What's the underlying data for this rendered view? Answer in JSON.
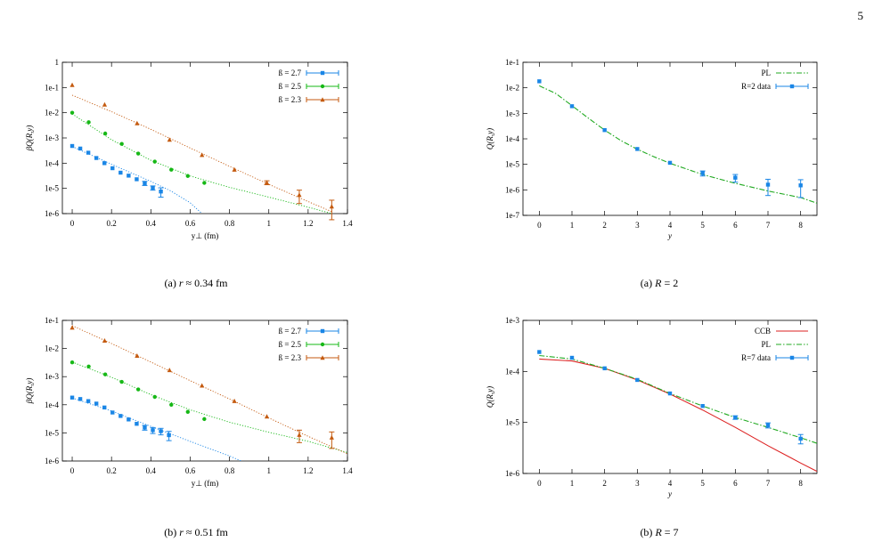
{
  "page_number": "5",
  "figures": {
    "a_left": {
      "caption_label": "(a)",
      "caption_var": "r",
      "caption_rest": "≈ 0.34 fm"
    },
    "b_left": {
      "caption_label": "(b)",
      "caption_var": "r",
      "caption_rest": "≈ 0.51 fm"
    },
    "a_right": {
      "caption_label": "(a)",
      "caption_var": "R",
      "caption_rest": "= 2"
    },
    "b_right": {
      "caption_label": "(b)",
      "caption_var": "R",
      "caption_rest": "= 7"
    }
  },
  "chart_data": [
    {
      "id": "p1",
      "type": "scatter",
      "log_y": true,
      "ylabel": "βQ(R,y)",
      "xlabel": "y⊥ (fm)",
      "xlim": [
        -0.05,
        1.4
      ],
      "ylim": [
        1e-06,
        1
      ],
      "xticks": [
        0,
        0.2,
        0.4,
        0.6,
        0.8,
        1,
        1.2,
        1.4
      ],
      "xtick_labels": [
        "0",
        "0.2",
        "0.4",
        "0.6",
        "0.8",
        "1",
        "1.2",
        "1.4"
      ],
      "yticks": [
        1e-06,
        1e-05,
        0.0001,
        0.001,
        0.01,
        0.1,
        1
      ],
      "ytick_labels": [
        "1e-6",
        "1e-5",
        "1e-4",
        "1e-3",
        "1e-2",
        "1e-1",
        "1"
      ],
      "legend_position": "top-right",
      "series": [
        {
          "name": "ß = 2.7",
          "color": "#1a86e6",
          "marker": "square",
          "x": [
            0,
            0.041,
            0.082,
            0.123,
            0.164,
            0.205,
            0.246,
            0.287,
            0.328,
            0.369,
            0.41,
            0.451
          ],
          "y": [
            0.00048,
            0.00038,
            0.00026,
            0.00016,
            0.0001,
            6.3e-05,
            4.2e-05,
            3.2e-05,
            2.3e-05,
            1.6e-05,
            1.05e-05,
            7.5e-06
          ],
          "err": [
            0,
            0,
            0,
            0,
            0,
            0,
            0,
            0,
            0,
            3e-06,
            2e-06,
            3e-06
          ],
          "fit": {
            "x": [
              0,
              0.2,
              0.4,
              0.5,
              0.6,
              0.66
            ],
            "y": [
              0.00046,
              9e-05,
              1.9e-05,
              8e-06,
              2.7e-06,
              1e-06
            ]
          }
        },
        {
          "name": "ß = 2.5",
          "color": "#16b816",
          "marker": "circle",
          "x": [
            0,
            0.084,
            0.168,
            0.252,
            0.336,
            0.42,
            0.504,
            0.588,
            0.672
          ],
          "y": [
            0.01,
            0.0042,
            0.0015,
            0.00058,
            0.00024,
            0.000115,
            5.5e-05,
            3.1e-05,
            1.65e-05
          ],
          "err": [
            0,
            0,
            0,
            0,
            0,
            0,
            0,
            0,
            0
          ],
          "fit": {
            "x": [
              0,
              0.2,
              0.4,
              0.6,
              0.8,
              1.0,
              1.2,
              1.32
            ],
            "y": [
              0.009,
              0.00085,
              0.00013,
              3.1e-05,
              1.1e-05,
              4.5e-06,
              1.8e-06,
              1e-06
            ]
          }
        },
        {
          "name": "ß = 2.3",
          "color": "#c45a0f",
          "marker": "triangle",
          "x": [
            0,
            0.165,
            0.33,
            0.495,
            0.66,
            0.825,
            0.99,
            1.155,
            1.32
          ],
          "y": [
            0.125,
            0.021,
            0.0038,
            0.00085,
            0.00021,
            5.5e-05,
            1.7e-05,
            5.5e-06,
            1.9e-06
          ],
          "err": [
            0,
            0,
            0,
            0,
            0,
            0,
            3e-06,
            3e-06,
            1.5e-06
          ],
          "fit": {
            "x": [
              0,
              0.2,
              0.4,
              0.6,
              0.8,
              1.0,
              1.2,
              1.32
            ],
            "y": [
              0.05,
              0.011,
              0.0022,
              0.0004,
              7.5e-05,
              1.45e-05,
              3e-06,
              1.2e-06
            ]
          }
        }
      ]
    },
    {
      "id": "p2",
      "type": "scatter",
      "log_y": true,
      "ylabel": "βQ(R,y)",
      "xlabel": "y⊥ (fm)",
      "xlim": [
        -0.05,
        1.4
      ],
      "ylim": [
        1e-06,
        0.1
      ],
      "xticks": [
        0,
        0.2,
        0.4,
        0.6,
        0.8,
        1,
        1.2,
        1.4
      ],
      "xtick_labels": [
        "0",
        "0.2",
        "0.4",
        "0.6",
        "0.8",
        "1",
        "1.2",
        "1.4"
      ],
      "yticks": [
        1e-06,
        1e-05,
        0.0001,
        0.001,
        0.01,
        0.1
      ],
      "ytick_labels": [
        "1e-6",
        "1e-5",
        "1e-4",
        "1e-3",
        "1e-2",
        "1e-1"
      ],
      "legend_position": "top-right",
      "series": [
        {
          "name": "ß = 2.7",
          "color": "#1a86e6",
          "marker": "square",
          "x": [
            0,
            0.041,
            0.082,
            0.123,
            0.164,
            0.205,
            0.246,
            0.287,
            0.328,
            0.369,
            0.41,
            0.451,
            0.492
          ],
          "y": [
            0.00018,
            0.00016,
            0.000135,
            0.00011,
            8e-05,
            5.3e-05,
            4e-05,
            3e-05,
            2.1e-05,
            1.55e-05,
            1.25e-05,
            1.15e-05,
            8.3e-06
          ],
          "err": [
            0,
            0,
            0,
            0,
            0,
            0,
            0,
            0,
            0,
            3e-06,
            3e-06,
            3e-06,
            3e-06
          ],
          "fit": {
            "x": [
              0,
              0.2,
              0.4,
              0.6,
              0.8,
              0.86
            ],
            "y": [
              0.000175,
              6e-05,
              1.7e-05,
              5e-06,
              1.5e-06,
              1e-06
            ]
          }
        },
        {
          "name": "ß = 2.5",
          "color": "#16b816",
          "marker": "circle",
          "x": [
            0,
            0.084,
            0.168,
            0.252,
            0.336,
            0.42,
            0.504,
            0.588,
            0.672
          ],
          "y": [
            0.0032,
            0.0023,
            0.0012,
            0.00065,
            0.00035,
            0.00019,
            0.0001,
            5.6e-05,
            3.1e-05
          ],
          "err": [
            0,
            0,
            0,
            0,
            0,
            0,
            0,
            0,
            0
          ],
          "fit": {
            "x": [
              0,
              0.2,
              0.4,
              0.6,
              0.8,
              1.0,
              1.2,
              1.4
            ],
            "y": [
              0.0033,
              0.00095,
              0.00023,
              6.6e-05,
              2.4e-05,
              1.05e-05,
              5e-06,
              2e-06
            ]
          }
        },
        {
          "name": "ß = 2.3",
          "color": "#c45a0f",
          "marker": "triangle",
          "x": [
            0,
            0.165,
            0.33,
            0.495,
            0.66,
            0.825,
            0.99,
            1.155,
            1.32
          ],
          "y": [
            0.055,
            0.019,
            0.0055,
            0.0017,
            0.00048,
            0.000135,
            3.8e-05,
            8.5e-06,
            6.8e-06
          ],
          "err": [
            0,
            0,
            0,
            0,
            0,
            0,
            0,
            4e-06,
            4e-06
          ],
          "fit": {
            "x": [
              0,
              0.2,
              0.4,
              0.6,
              0.8,
              1.0,
              1.2,
              1.4
            ],
            "y": [
              0.065,
              0.015,
              0.0033,
              0.00072,
              0.00016,
              3.4e-05,
              7.5e-06,
              1.8e-06
            ]
          }
        }
      ]
    },
    {
      "id": "p3",
      "type": "scatter",
      "log_y": true,
      "ylabel": "Q(R,y)",
      "xlabel": "y",
      "xlim": [
        -0.5,
        8.5
      ],
      "ylim": [
        1e-07,
        0.1
      ],
      "xticks": [
        0,
        1,
        2,
        3,
        4,
        5,
        6,
        7,
        8
      ],
      "xtick_labels": [
        "0",
        "1",
        "2",
        "3",
        "4",
        "5",
        "6",
        "7",
        "8"
      ],
      "yticks": [
        1e-07,
        1e-06,
        1e-05,
        0.0001,
        0.001,
        0.01,
        0.1
      ],
      "ytick_labels": [
        "1e-7",
        "1e-6",
        "1e-5",
        "1e-4",
        "1e-3",
        "1e-2",
        "1e-1"
      ],
      "legend_position": "top-right",
      "series": [
        {
          "name": "PL",
          "color": "#22aa22",
          "style": "dashdot",
          "line": {
            "x": [
              0,
              0.5,
              1,
              1.5,
              2,
              2.5,
              3,
              3.5,
              4,
              5,
              6,
              7,
              8,
              8.5
            ],
            "y": [
              0.012,
              0.006,
              0.002,
              0.00065,
              0.00022,
              8.5e-05,
              3.9e-05,
              2e-05,
              1.1e-05,
              4e-06,
              1.8e-06,
              9e-07,
              5e-07,
              3e-07
            ]
          }
        },
        {
          "name": "R=2 data",
          "color": "#1a86e6",
          "marker": "square",
          "x": [
            0,
            1,
            2,
            3,
            4,
            5,
            6,
            7,
            8
          ],
          "y": [
            0.018,
            0.0019,
            0.00022,
            4e-05,
            1.15e-05,
            4.5e-06,
            3e-06,
            1.6e-06,
            1.5e-06
          ],
          "err": [
            0,
            0,
            0,
            0,
            0,
            1e-06,
            1e-06,
            1e-06,
            1e-06
          ]
        }
      ]
    },
    {
      "id": "p4",
      "type": "scatter",
      "log_y": true,
      "ylabel": "Q(R,y)",
      "xlabel": "y",
      "xlim": [
        -0.5,
        8.5
      ],
      "ylim": [
        1e-06,
        0.001
      ],
      "xticks": [
        0,
        1,
        2,
        3,
        4,
        5,
        6,
        7,
        8
      ],
      "xtick_labels": [
        "0",
        "1",
        "2",
        "3",
        "4",
        "5",
        "6",
        "7",
        "8"
      ],
      "yticks": [
        1e-06,
        1e-05,
        0.0001,
        0.001
      ],
      "ytick_labels": [
        "1e-6",
        "1e-5",
        "1e-4",
        "1e-3"
      ],
      "legend_position": "top-right",
      "series": [
        {
          "name": "CCB",
          "color": "#dd2222",
          "style": "solid",
          "line": {
            "x": [
              0,
              1,
              2,
              3,
              4,
              5,
              6,
              7,
              8,
              8.5
            ],
            "y": [
              0.000175,
              0.00016,
              0.000115,
              6.8e-05,
              3.6e-05,
              1.75e-05,
              8e-06,
              3.5e-06,
              1.6e-06,
              1.1e-06
            ]
          }
        },
        {
          "name": "PL",
          "color": "#22aa22",
          "style": "dashdot",
          "line": {
            "x": [
              0,
              1,
              2,
              3,
              4,
              5,
              6,
              7,
              8,
              8.5
            ],
            "y": [
              0.000205,
              0.000175,
              0.000115,
              7e-05,
              3.7e-05,
              2.1e-05,
              1.25e-05,
              8e-06,
              5e-06,
              3.9e-06
            ]
          }
        },
        {
          "name": "R=7 data",
          "color": "#1a86e6",
          "marker": "square",
          "x": [
            0,
            1,
            2,
            3,
            4,
            5,
            6,
            7,
            8
          ],
          "y": [
            0.00024,
            0.000185,
            0.000115,
            6.8e-05,
            3.7e-05,
            2.1e-05,
            1.25e-05,
            8.8e-06,
            4.8e-06
          ],
          "err": [
            0,
            0,
            0,
            0,
            0,
            0,
            1e-06,
            1e-06,
            1e-06
          ]
        }
      ]
    }
  ]
}
